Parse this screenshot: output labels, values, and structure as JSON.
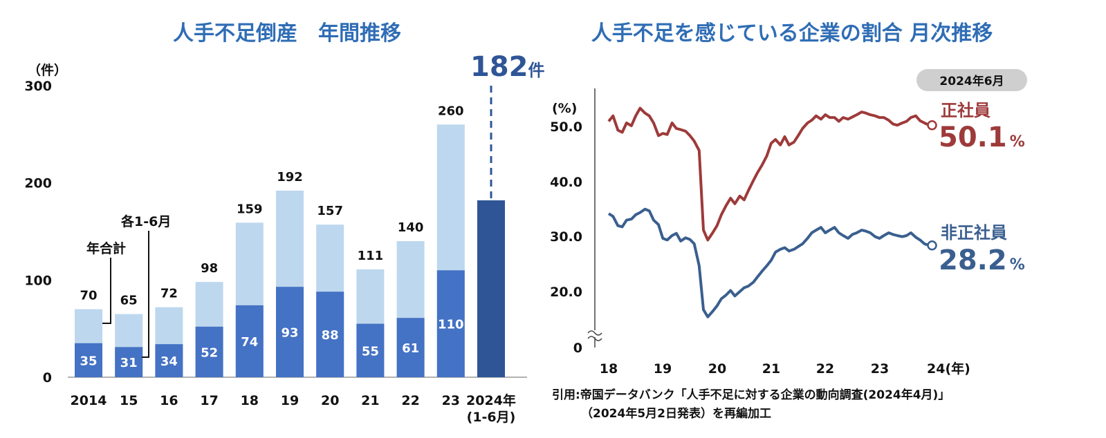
{
  "colors": {
    "title": "#2f6db5",
    "bar_total": "#bdd7ee",
    "bar_half": "#4472c4",
    "bar_current": "#2f5597",
    "line_regular": "#9e3a3a",
    "line_nonregular": "#3a5f8f",
    "highlight": "#2f5597",
    "badge": "#cfcfcf"
  },
  "chart_data": [
    {
      "type": "bar",
      "title": "人手不足倒産　年間推移",
      "ylabel": "（件）",
      "ylim": [
        0,
        300
      ],
      "yticks": [
        "0",
        "100",
        "200",
        "300"
      ],
      "categories": [
        "2014",
        "15",
        "16",
        "17",
        "18",
        "19",
        "20",
        "21",
        "22",
        "23"
      ],
      "series": [
        {
          "name": "年合計",
          "values": [
            70,
            65,
            72,
            98,
            159,
            192,
            157,
            111,
            140,
            260
          ]
        },
        {
          "name": "各1-6月",
          "values": [
            35,
            31,
            34,
            52,
            74,
            93,
            88,
            55,
            61,
            110
          ]
        }
      ],
      "current": {
        "label": "2024年",
        "sublabel": "(1-6月)",
        "value": 182,
        "value_text": "182",
        "unit": "件"
      },
      "annotations": {
        "total_label": "年合計",
        "half_label": "各1-6月"
      }
    },
    {
      "type": "line",
      "title": "人手不足を感じている企業の割合 月次推移",
      "ylabel": "(%)",
      "ylim": [
        0,
        55
      ],
      "yticks": [
        "0",
        "20.0",
        "30.0",
        "40.0",
        "50.0"
      ],
      "xticks": [
        "18",
        "19",
        "20",
        "21",
        "22",
        "23",
        "24(年)"
      ],
      "x_start": 2018,
      "badge": "2024年6月",
      "series": [
        {
          "name": "正社員",
          "final_value": "50.1",
          "unit": "%",
          "x": [
            2018.0,
            2018.08,
            2018.17,
            2018.25,
            2018.33,
            2018.42,
            2018.5,
            2018.58,
            2018.67,
            2018.75,
            2018.83,
            2018.92,
            2019.0,
            2019.08,
            2019.17,
            2019.25,
            2019.33,
            2019.42,
            2019.5,
            2019.58,
            2019.67,
            2019.75,
            2019.83,
            2019.92,
            2020.0,
            2020.08,
            2020.17,
            2020.25,
            2020.33,
            2020.42,
            2020.5,
            2020.58,
            2020.67,
            2020.75,
            2020.83,
            2020.92,
            2021.0,
            2021.08,
            2021.17,
            2021.25,
            2021.33,
            2021.42,
            2021.5,
            2021.58,
            2021.67,
            2021.75,
            2021.83,
            2021.92,
            2022.0,
            2022.08,
            2022.17,
            2022.25,
            2022.33,
            2022.42,
            2022.5,
            2022.58,
            2022.67,
            2022.75,
            2022.83,
            2022.92,
            2023.0,
            2023.08,
            2023.17,
            2023.25,
            2023.33,
            2023.42,
            2023.5,
            2023.58,
            2023.67,
            2023.75,
            2023.83,
            2023.92
          ],
          "values": [
            50.8,
            51.8,
            49.2,
            48.8,
            50.5,
            50.0,
            51.8,
            53.2,
            52.3,
            51.8,
            50.5,
            48.2,
            48.6,
            48.4,
            50.5,
            49.5,
            49.3,
            49.0,
            48.2,
            47.2,
            45.5,
            31.0,
            29.2,
            30.5,
            31.8,
            33.8,
            35.5,
            36.8,
            35.8,
            37.2,
            36.5,
            38.2,
            40.0,
            41.5,
            42.8,
            44.5,
            46.8,
            47.5,
            46.5,
            48.0,
            46.5,
            47.0,
            48.2,
            49.5,
            50.5,
            51.0,
            51.8,
            51.2,
            52.0,
            51.5,
            51.5,
            50.8,
            51.5,
            51.2,
            51.6,
            52.0,
            52.5,
            52.3,
            52.0,
            51.8,
            51.5,
            51.5,
            51.0,
            50.3,
            50.1,
            50.5,
            50.8,
            51.5,
            51.8,
            50.9,
            50.5,
            50.1
          ]
        },
        {
          "name": "非正社員",
          "final_value": "28.2",
          "unit": "%",
          "x": [
            2018.0,
            2018.08,
            2018.17,
            2018.25,
            2018.33,
            2018.42,
            2018.5,
            2018.58,
            2018.67,
            2018.75,
            2018.83,
            2018.92,
            2019.0,
            2019.08,
            2019.17,
            2019.25,
            2019.33,
            2019.42,
            2019.5,
            2019.58,
            2019.67,
            2019.75,
            2019.83,
            2019.92,
            2020.0,
            2020.08,
            2020.17,
            2020.25,
            2020.33,
            2020.42,
            2020.5,
            2020.58,
            2020.67,
            2020.75,
            2020.83,
            2020.92,
            2021.0,
            2021.08,
            2021.17,
            2021.25,
            2021.33,
            2021.42,
            2021.5,
            2021.58,
            2021.67,
            2021.75,
            2021.83,
            2021.92,
            2022.0,
            2022.08,
            2022.17,
            2022.25,
            2022.33,
            2022.42,
            2022.5,
            2022.58,
            2022.67,
            2022.75,
            2022.83,
            2022.92,
            2023.0,
            2023.08,
            2023.17,
            2023.25,
            2023.33,
            2023.42,
            2023.5,
            2023.58,
            2023.67,
            2023.75,
            2023.83,
            2023.92
          ],
          "values": [
            34.0,
            33.5,
            31.8,
            31.6,
            32.8,
            33.0,
            33.8,
            34.2,
            34.8,
            34.5,
            32.8,
            32.0,
            29.5,
            29.2,
            30.0,
            30.4,
            29.0,
            29.6,
            29.3,
            28.5,
            24.5,
            16.5,
            15.2,
            16.2,
            17.2,
            18.5,
            19.2,
            20.0,
            19.0,
            19.8,
            20.5,
            20.8,
            21.5,
            22.5,
            23.5,
            24.5,
            25.5,
            27.0,
            27.5,
            27.8,
            27.2,
            27.5,
            28.0,
            28.5,
            29.5,
            30.5,
            31.0,
            31.5,
            30.5,
            31.0,
            31.5,
            30.5,
            30.0,
            29.5,
            30.2,
            30.5,
            31.0,
            30.8,
            30.5,
            29.8,
            29.5,
            30.0,
            30.5,
            30.2,
            30.0,
            29.8,
            30.0,
            30.5,
            29.7,
            29.2,
            28.5,
            28.2
          ]
        }
      ]
    }
  ],
  "source": {
    "line1": "引用:帝国データバンク「人手不足に対する企業の動向調査(2024年4月)」",
    "line2": "（2024年5月2日発表）を再編加工"
  }
}
